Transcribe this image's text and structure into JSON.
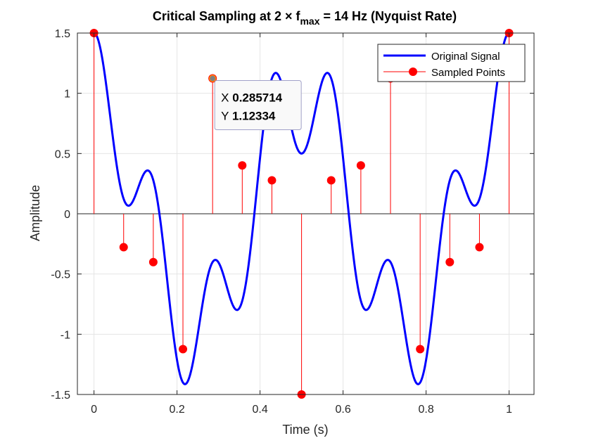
{
  "chart_data": {
    "type": "line",
    "title": "Critical Sampling at 2 × f",
    "title_sub": "max",
    "title_rest": " = 14 Hz (Nyquist Rate)",
    "xlabel": "Time (s)",
    "ylabel": "Amplitude",
    "xlim": [
      -0.04,
      1.06
    ],
    "ylim": [
      -1.5,
      1.5
    ],
    "xticks": [
      0,
      0.2,
      0.4,
      0.6,
      0.8,
      1
    ],
    "xtick_labels": [
      "0",
      "0.2",
      "0.4",
      "0.6",
      "0.8",
      "1"
    ],
    "yticks": [
      -1.5,
      -1,
      -0.5,
      0,
      0.5,
      1,
      1.5
    ],
    "ytick_labels": [
      "-1.5",
      "-1",
      "-0.5",
      "0",
      "0.5",
      "1",
      "1.5"
    ],
    "grid": true,
    "legend_position": "top-right",
    "series": [
      {
        "name": "Original Signal",
        "kind": "line",
        "color": "#0000ff",
        "formula": "cos(2π·2t) + 0.5·cos(2π·7t)",
        "x_range": [
          0,
          1
        ]
      },
      {
        "name": "Sampled Points",
        "kind": "stem",
        "color": "#ff0000",
        "x": [
          0,
          0.071429,
          0.142857,
          0.214286,
          0.285714,
          0.357143,
          0.428571,
          0.5,
          0.571429,
          0.642857,
          0.714286,
          0.785714,
          0.857143,
          0.928571,
          1
        ],
        "y": [
          1.5,
          -0.2776,
          -0.401,
          -1.1234,
          1.1234,
          0.401,
          0.2776,
          -1.5,
          0.2776,
          0.401,
          1.1234,
          -1.1234,
          -0.401,
          -0.2776,
          1.5
        ]
      }
    ],
    "datatip": {
      "x_label": "X",
      "x_value": "0.285714",
      "y_label": "Y",
      "y_value": "1.12334",
      "x": 0.285714,
      "y": 1.12334
    }
  }
}
